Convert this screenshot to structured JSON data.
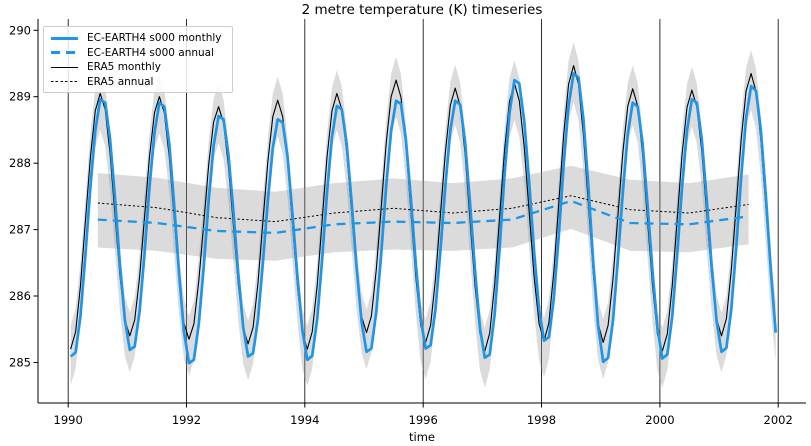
{
  "chart": {
    "title": "2 metre temperature (K) timeseries",
    "xlabel": "time"
  },
  "legend": {
    "position": "upper left",
    "items": [
      {
        "label": "EC-EARTH4 s000 monthly",
        "line": "thick solid blue"
      },
      {
        "label": "EC-EARTH4 s000 annual",
        "line": "dashed blue"
      },
      {
        "label": "ERA5 monthly",
        "line": "thin solid black"
      },
      {
        "label": "ERA5 annual",
        "line": "dotted black"
      }
    ]
  },
  "chart_data": {
    "type": "line",
    "title": "2 metre temperature (K) timeseries",
    "xlabel": "time",
    "ylabel": "",
    "xlim": [
      1989.49,
      2002.47
    ],
    "ylim": [
      284.39,
      290.17
    ],
    "x_ticks": [
      1990,
      1992,
      1994,
      1996,
      1998,
      2000,
      2002
    ],
    "x_tick_labels": [
      "1990",
      "1992",
      "1994",
      "1996",
      "1998",
      "2000",
      "2002"
    ],
    "y_ticks": [
      285,
      286,
      287,
      288,
      289,
      290
    ],
    "y_tick_labels": [
      "285",
      "286",
      "287",
      "288",
      "289",
      "290"
    ],
    "grid": {
      "axis": "x",
      "color": "#1a1a1a",
      "width": 0.9
    },
    "legend_position": "upper left",
    "colors": {
      "ec_earth4": "#1e96e8",
      "era5": "#000000",
      "band": "#999999"
    },
    "series": [
      {
        "name": "EC-EARTH4 s000 monthly",
        "color": "#1e96e8",
        "style": "solid",
        "width": 2.7,
        "x": {
          "start": 1990.0417,
          "step": 0.083333,
          "n": 144
        },
        "y": [
          285.09,
          285.15,
          285.7,
          286.61,
          287.64,
          288.49,
          288.96,
          288.91,
          288.36,
          287.48,
          286.48,
          285.64,
          285.19,
          285.24,
          285.78,
          286.65,
          287.64,
          288.46,
          288.91,
          288.85,
          288.29,
          287.37,
          286.33,
          285.46,
          284.99,
          285.04,
          285.58,
          286.45,
          287.44,
          288.26,
          288.71,
          288.66,
          288.14,
          287.28,
          286.33,
          285.53,
          285.09,
          285.14,
          285.65,
          286.5,
          287.44,
          288.23,
          288.66,
          288.61,
          288.09,
          287.23,
          286.28,
          285.48,
          285.04,
          285.1,
          285.65,
          286.54,
          287.55,
          288.4,
          288.86,
          288.81,
          288.27,
          287.4,
          286.43,
          285.61,
          285.16,
          285.21,
          285.76,
          286.65,
          287.65,
          288.48,
          288.94,
          288.89,
          288.35,
          287.47,
          286.49,
          285.66,
          285.21,
          285.26,
          285.8,
          286.68,
          287.66,
          288.49,
          288.94,
          288.88,
          288.32,
          287.41,
          286.39,
          285.53,
          285.07,
          285.12,
          285.73,
          286.71,
          287.82,
          288.75,
          289.25,
          289.2,
          288.63,
          287.71,
          286.67,
          285.8,
          285.33,
          285.38,
          285.96,
          286.91,
          287.98,
          288.87,
          289.35,
          289.29,
          288.67,
          287.65,
          286.5,
          285.54,
          285.01,
          285.07,
          285.63,
          286.55,
          287.57,
          288.44,
          288.91,
          288.85,
          288.3,
          287.39,
          286.38,
          285.53,
          285.06,
          285.12,
          285.68,
          286.6,
          287.62,
          288.49,
          288.96,
          288.91,
          288.36,
          287.46,
          286.46,
          285.62,
          285.16,
          285.22,
          285.8,
          286.74,
          287.79,
          288.68,
          289.16,
          289.09,
          288.49,
          287.5,
          286.39,
          285.45
        ]
      },
      {
        "name": "EC-EARTH4 s000 annual",
        "color": "#1e96e8",
        "style": "dashed",
        "width": 2.3,
        "dash": "9,6",
        "x": [
          1990.5,
          1991.5,
          1992.5,
          1993.5,
          1994.5,
          1995.5,
          1996.5,
          1997.5,
          1998.5,
          1999.5,
          2000.5,
          2001.5
        ],
        "y": [
          287.15,
          287.1,
          286.98,
          286.95,
          287.08,
          287.12,
          287.1,
          287.15,
          287.43,
          287.1,
          287.08,
          287.2
        ]
      },
      {
        "name": "ERA5 monthly",
        "color": "#000000",
        "style": "solid",
        "width": 1.1,
        "x": {
          "start": 1990.0417,
          "step": 0.083333,
          "n": 144
        },
        "y": [
          285.2,
          285.46,
          286.16,
          287.13,
          288.09,
          288.79,
          289.05,
          288.81,
          288.14,
          287.23,
          286.31,
          285.64,
          285.4,
          285.64,
          286.3,
          287.2,
          288.1,
          288.76,
          289.0,
          288.76,
          288.09,
          287.18,
          286.26,
          285.59,
          285.35,
          285.58,
          286.23,
          287.1,
          287.98,
          288.62,
          288.85,
          288.61,
          287.96,
          287.07,
          286.17,
          285.52,
          285.28,
          285.53,
          286.2,
          287.12,
          288.03,
          288.7,
          288.95,
          288.7,
          288.01,
          287.08,
          286.14,
          285.45,
          285.2,
          285.46,
          286.16,
          287.13,
          288.09,
          288.79,
          289.05,
          288.81,
          288.15,
          287.25,
          286.35,
          285.69,
          285.45,
          285.7,
          286.4,
          287.35,
          288.3,
          289.0,
          289.25,
          288.99,
          288.26,
          287.28,
          286.29,
          285.56,
          285.3,
          285.56,
          286.26,
          287.22,
          288.17,
          288.87,
          289.13,
          288.86,
          288.14,
          287.15,
          286.16,
          285.44,
          285.17,
          285.44,
          286.18,
          287.19,
          288.19,
          288.93,
          289.2,
          288.94,
          288.23,
          287.26,
          286.29,
          285.58,
          285.32,
          285.6,
          286.36,
          287.4,
          288.43,
          289.19,
          289.47,
          289.19,
          288.43,
          287.39,
          286.34,
          285.58,
          285.3,
          285.56,
          286.26,
          287.21,
          288.17,
          288.86,
          289.12,
          288.86,
          288.13,
          287.15,
          286.16,
          285.43,
          285.17,
          285.43,
          286.15,
          287.14,
          288.12,
          288.84,
          289.1,
          288.85,
          288.18,
          287.25,
          286.33,
          285.65,
          285.4,
          285.66,
          286.39,
          287.38,
          288.36,
          289.09,
          289.35,
          289.08,
          288.34,
          287.33,
          286.31,
          285.57
        ]
      },
      {
        "name": "ERA5 annual",
        "color": "#000000",
        "style": "dotted",
        "width": 1.0,
        "dash": "2.2,2.2",
        "x": [
          1990.5,
          1991.5,
          1992.5,
          1993.5,
          1994.5,
          1995.5,
          1996.5,
          1997.5,
          1998.5,
          1999.5,
          2000.5,
          2001.5
        ],
        "y": [
          287.4,
          287.33,
          287.18,
          287.12,
          287.25,
          287.32,
          287.25,
          287.32,
          287.51,
          287.3,
          287.25,
          287.38
        ]
      }
    ],
    "bands": [
      {
        "name": "era5-monthly-spread-band",
        "series_index": 2,
        "upper_offset": 0.35,
        "lower_offset": -0.55,
        "color": "#999999",
        "opacity": 0.35
      },
      {
        "name": "annual-spread-band",
        "series_index": 3,
        "upper": [
          287.85,
          287.78,
          287.63,
          287.57,
          287.7,
          287.77,
          287.7,
          287.77,
          287.96,
          287.75,
          287.7,
          287.83
        ],
        "lower": [
          286.73,
          286.68,
          286.56,
          286.53,
          286.66,
          286.7,
          286.68,
          286.73,
          287.01,
          286.68,
          286.66,
          286.78
        ],
        "color": "#999999",
        "opacity": 0.35
      }
    ]
  }
}
